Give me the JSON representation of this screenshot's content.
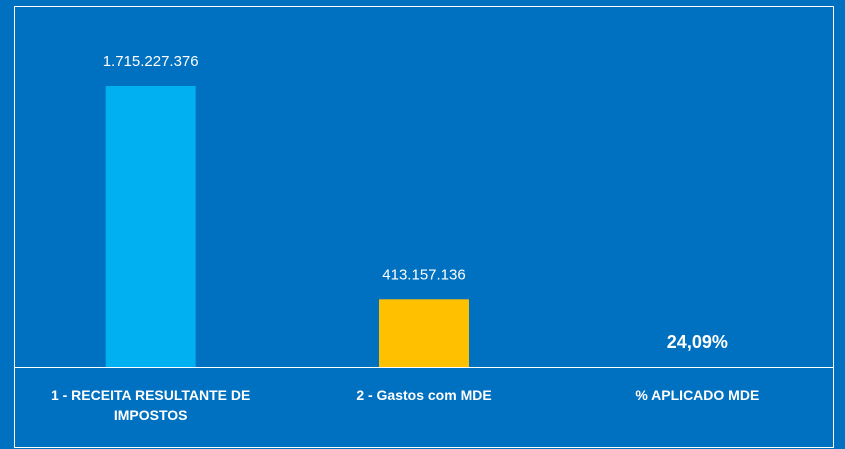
{
  "chart_data": {
    "type": "bar",
    "categories": [
      "1 - RECEITA RESULTANTE DE IMPOSTOS",
      "2 - Gastos com MDE",
      "% APLICADO MDE"
    ],
    "values": [
      1715227376,
      413157136,
      24.09
    ],
    "value_labels": [
      "1.715.227.376",
      "413.157.136",
      "24,09%"
    ],
    "colors": [
      "#00b0f0",
      "#ffc000",
      "#ffffff"
    ]
  }
}
